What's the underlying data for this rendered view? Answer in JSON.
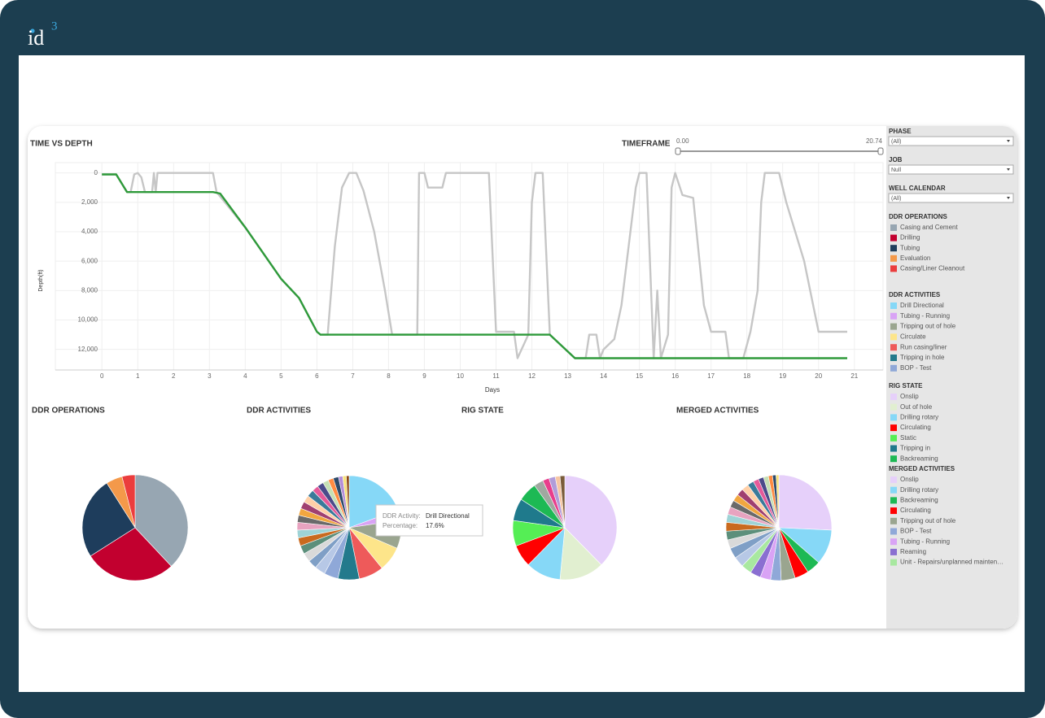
{
  "logo": {
    "text": "id",
    "sup": "3"
  },
  "timeframe": {
    "title": "TIMEFRAME",
    "min": {
      "value": 0,
      "label": "0.00"
    },
    "max": 20.74
  },
  "filters": [
    {
      "label": "PHASE",
      "value": "(All)"
    },
    {
      "label": "JOB",
      "value": "Null"
    },
    {
      "label": "WELL CALENDAR",
      "value": "(All)"
    }
  ],
  "tooltip": {
    "label1": "DDR Activity:",
    "value1": "Drill Directional",
    "label2": "Percentage:",
    "value2": "17.6%"
  },
  "chart_data": [
    {
      "type": "line",
      "title": "TIME VS DEPTH",
      "x_label": "Days",
      "y_label": "Depth(ft)",
      "xlim": [
        -1.3,
        21.8
      ],
      "ylim": [
        13400,
        -700
      ],
      "y_inverted": true,
      "grid": true,
      "xticks": [
        0,
        1,
        2,
        3,
        4,
        5,
        6,
        7,
        8,
        9,
        10,
        11,
        12,
        13,
        14,
        15,
        16,
        17,
        18,
        19,
        20,
        21
      ],
      "yticks": [
        0,
        {
          "value": 2000,
          "label": "2,000"
        },
        {
          "value": 4000,
          "label": "4,000"
        },
        {
          "value": 6000,
          "label": "6,000"
        },
        {
          "value": 8000,
          "label": "8,000"
        },
        {
          "value": 10000,
          "label": "10,000"
        },
        {
          "value": 12000,
          "label": "12,000"
        }
      ],
      "series": [
        {
          "color": "#c6c6c6",
          "x": [
            0,
            0.4,
            0.7,
            0.8,
            0.9,
            1.0,
            1.1,
            1.2,
            1.4,
            1.45,
            1.5,
            1.55,
            1.7,
            3.1,
            3.2,
            4,
            5,
            5.5,
            6,
            6.1,
            6.3,
            6.5,
            6.7,
            6.9,
            7.1,
            7.3,
            7.6,
            7.9,
            8.1,
            8.8,
            8.85,
            9.0,
            9.1,
            9.5,
            9.6,
            10.8,
            11.0,
            11.5,
            11.6,
            11.9,
            12.0,
            12.1,
            12.3,
            12.5,
            13.2,
            13.5,
            13.6,
            13.8,
            13.9,
            14.0,
            14.3,
            14.5,
            14.9,
            15.0,
            15.2,
            15.4,
            15.5,
            15.6,
            15.8,
            15.9,
            16.0,
            16.2,
            16.5,
            16.8,
            17.0,
            17.4,
            17.5,
            17.9,
            18.1,
            18.3,
            18.4,
            18.5,
            18.9,
            19.1,
            19.6,
            20.0,
            20.8
          ],
          "y": [
            100,
            100,
            1300,
            1300,
            100,
            0,
            300,
            1300,
            1300,
            0,
            1300,
            0,
            0,
            0,
            1300,
            3700,
            7200,
            8500,
            10800,
            11000,
            11000,
            5000,
            1000,
            0,
            0,
            1200,
            4000,
            8000,
            11000,
            11000,
            0,
            0,
            1000,
            1000,
            0,
            0,
            10800,
            10800,
            12600,
            11000,
            2000,
            0,
            0,
            11000,
            12600,
            12600,
            11000,
            11000,
            12600,
            12000,
            11300,
            9000,
            1000,
            0,
            0,
            12600,
            8000,
            12600,
            11000,
            1000,
            0,
            1500,
            1700,
            9000,
            10800,
            10800,
            12600,
            12600,
            10800,
            8000,
            2000,
            0,
            0,
            2000,
            6000,
            10800,
            10800
          ]
        },
        {
          "color": "#2e9a3a",
          "x": [
            0,
            0.4,
            0.7,
            3.1,
            3.3,
            4,
            5,
            5.5,
            6,
            6.1,
            12.5,
            13.2,
            20.8
          ],
          "y": [
            100,
            100,
            1300,
            1300,
            1400,
            3700,
            7200,
            8500,
            10800,
            11000,
            11000,
            12600,
            12600
          ]
        }
      ]
    },
    {
      "type": "pie",
      "title": "DDR OPERATIONS",
      "categories": [
        "Casing and Cement",
        "Drilling",
        "Tubing",
        "Evaluation",
        "Casing/Liner Cleanout"
      ],
      "values": [
        38,
        28,
        25,
        5,
        4
      ],
      "colors": [
        "#97a6b2",
        "#c2002f",
        "#1e3d5c",
        "#f4994a",
        "#eb3d3d"
      ]
    },
    {
      "type": "pie",
      "title": "DDR ACTIVITIES",
      "categories": [
        "Drill Directional",
        "Tubing - Running",
        "Tripping out of hole",
        "Circulate",
        "Run casing/liner",
        "Tripping in hole",
        "BOP - Test",
        null,
        null,
        null,
        null,
        null,
        null,
        null,
        null,
        null,
        null,
        null,
        null,
        null,
        null,
        null,
        null,
        null,
        null,
        null,
        null
      ],
      "values": [
        17.6,
        3,
        8,
        7,
        7,
        6,
        4,
        3,
        2.5,
        2.5,
        2.4,
        2.3,
        2.2,
        2.2,
        2,
        2,
        2,
        2,
        2,
        1.8,
        1.8,
        1.6,
        1.5,
        1.5,
        1.2,
        1,
        0.8
      ],
      "colors": [
        "#86d8f7",
        "#d9a3f5",
        "#9aa58f",
        "#fde58a",
        "#ee5a5a",
        "#237a8c",
        "#8fa8d8",
        "#b7c8e6",
        "#7f9fc6",
        "#d9d9d9",
        "#5c8f7b",
        "#c96a1f",
        "#9ed3d6",
        "#e8a3c0",
        "#6a6a6a",
        "#f1a640",
        "#a04070",
        "#ffd0a8",
        "#3a7a9a",
        "#e55a9a",
        "#4b4b8a",
        "#c6e0b4",
        "#ff8c42",
        "#2d4a6a",
        "#b58fd9",
        "#f7e27a",
        "#8b4513"
      ]
    },
    {
      "type": "pie",
      "title": "RIG STATE",
      "categories": [
        "Onslip",
        "Out of hole",
        "Drilling rotary",
        "Circulating",
        "Static",
        "Tripping in",
        "Backreaming",
        null,
        null,
        null,
        null,
        null
      ],
      "values": [
        38,
        14,
        11,
        7,
        8,
        7,
        6,
        3,
        2,
        2,
        1.5,
        1.5
      ],
      "colors": [
        "#e6d0fa",
        "#e1efd0",
        "#86d8f7",
        "#ff0000",
        "#55ee55",
        "#1f7a8c",
        "#1db954",
        "#a0a8a0",
        "#e83e8c",
        "#b19cd9",
        "#f7c6a3",
        "#7a5c3a"
      ]
    },
    {
      "type": "pie",
      "title": "MERGED ACTIVITIES",
      "categories": [
        "Onslip",
        "Drilling rotary",
        "Backreaming",
        "Circulating",
        "Tripping out of hole",
        "BOP - Test",
        "Tubing - Running",
        "Reaming",
        "Unit - Repairs/unplanned mainten…",
        null,
        null,
        null,
        null,
        null,
        null,
        null,
        null,
        null,
        null,
        null,
        null,
        null,
        null,
        null,
        null,
        null,
        null
      ],
      "values": [
        24,
        10,
        4,
        4,
        4,
        3,
        3,
        3,
        3,
        3,
        3,
        2.5,
        2.5,
        2.5,
        2.3,
        2.2,
        2,
        2,
        2,
        2,
        1.8,
        1.6,
        1.5,
        1.4,
        1.2,
        1,
        0.8
      ],
      "colors": [
        "#e6d0fa",
        "#86d8f7",
        "#1db954",
        "#ff0000",
        "#9aa58f",
        "#8fa8d8",
        "#d9a3f5",
        "#8a6fd1",
        "#a8e8a0",
        "#b7c8e6",
        "#7f9fc6",
        "#d9d9d9",
        "#5c8f7b",
        "#c96a1f",
        "#9ed3d6",
        "#e8a3c0",
        "#6a6a6a",
        "#f1a640",
        "#a04070",
        "#ffd0a8",
        "#3a7a9a",
        "#e55a9a",
        "#4b4b8a",
        "#c6e0b4",
        "#ff8c42",
        "#2d4a6a",
        "#f7e27a"
      ]
    }
  ]
}
